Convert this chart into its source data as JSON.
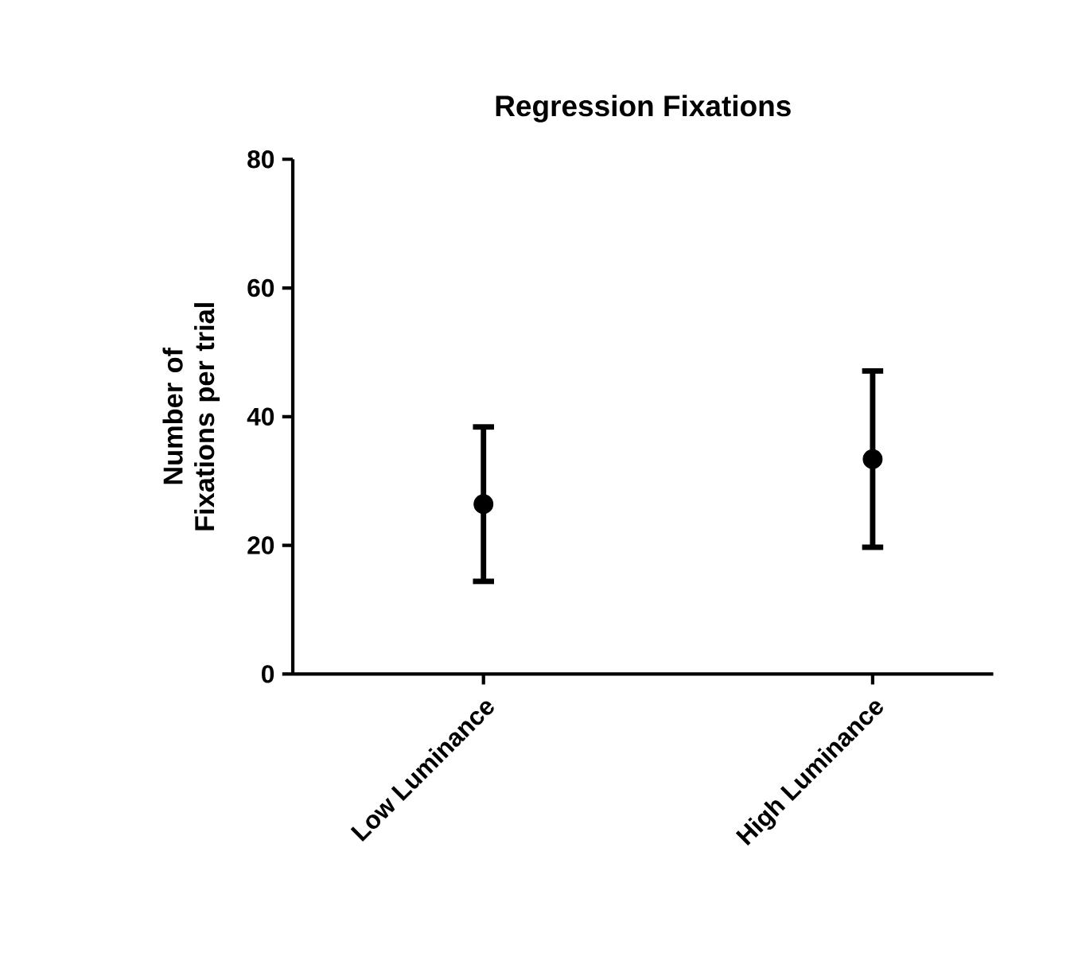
{
  "chart_data": {
    "type": "scatter",
    "title": "Regression Fixations",
    "ylabel": "Number of Fixations per trial",
    "categories": [
      "Low Luminance",
      "High Luminance"
    ],
    "values": [
      26.4,
      33.4
    ],
    "errors": [
      12,
      13.7
    ],
    "color": "#000000",
    "ylim": [
      0,
      80
    ],
    "yticks": [
      0,
      20,
      40,
      60,
      80
    ],
    "grid": false
  }
}
